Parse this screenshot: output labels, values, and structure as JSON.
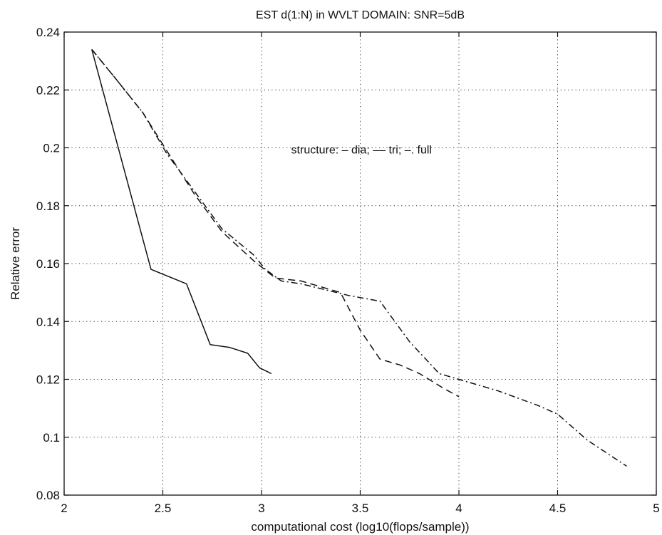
{
  "chart_data": {
    "type": "line",
    "title": "EST d(1:N) in WVLT DOMAIN: SNR=5dB",
    "xlabel": "computational cost (log10(flops/sample))",
    "ylabel": "Relative error",
    "xlim": [
      2,
      5
    ],
    "ylim": [
      0.08,
      0.24
    ],
    "x_ticks": [
      2,
      2.5,
      3,
      3.5,
      4,
      4.5,
      5
    ],
    "x_tick_labels": [
      "2",
      "2.5",
      "3",
      "3.5",
      "4",
      "4.5",
      "5"
    ],
    "y_ticks": [
      0.08,
      0.1,
      0.12,
      0.14,
      0.16,
      0.18,
      0.2,
      0.22,
      0.24
    ],
    "y_tick_labels": [
      "0.08",
      "0.1",
      "0.12",
      "0.14",
      "0.16",
      "0.18",
      "0.2",
      "0.22",
      "0.24"
    ],
    "grid": true,
    "grid_style": "dotted",
    "annotation": "structure: – dia; –– tri; –. full",
    "annotation_pos": [
      3.15,
      0.2
    ],
    "series": [
      {
        "line_style": "solid",
        "x": [
          2.14,
          2.44,
          2.62,
          2.74,
          2.84,
          2.93,
          2.99,
          3.05
        ],
        "y": [
          0.234,
          0.158,
          0.153,
          0.132,
          0.131,
          0.129,
          0.124,
          0.122
        ]
      },
      {
        "line_style": "dashed",
        "x": [
          2.14,
          2.26,
          2.4,
          2.52,
          2.66,
          2.8,
          2.96,
          3.07,
          3.2,
          3.4,
          3.5,
          3.6,
          3.7,
          3.8,
          3.92,
          4.0
        ],
        "y": [
          0.234,
          0.224,
          0.212,
          0.199,
          0.184,
          0.171,
          0.161,
          0.155,
          0.154,
          0.15,
          0.137,
          0.127,
          0.125,
          0.122,
          0.117,
          0.114
        ]
      },
      {
        "line_style": "dash-dot",
        "x": [
          2.14,
          2.26,
          2.4,
          2.52,
          2.66,
          2.8,
          2.96,
          3.02,
          3.1,
          3.2,
          3.44,
          3.6,
          3.75,
          3.9,
          4.0,
          4.2,
          4.4,
          4.5,
          4.65,
          4.85
        ],
        "y": [
          0.234,
          0.224,
          0.212,
          0.198,
          0.185,
          0.172,
          0.163,
          0.158,
          0.154,
          0.153,
          0.149,
          0.147,
          0.133,
          0.122,
          0.12,
          0.116,
          0.111,
          0.108,
          0.099,
          0.09
        ]
      }
    ]
  }
}
